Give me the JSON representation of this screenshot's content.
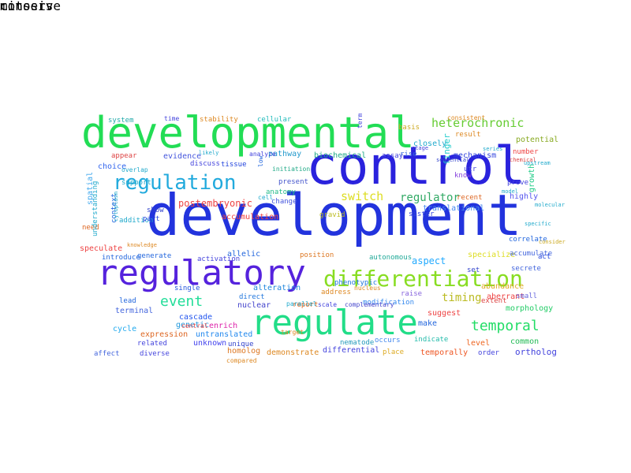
{
  "words": [
    {
      "text": "development",
      "color": "#2233dd"
    },
    {
      "text": "control",
      "color": "#2a22dd"
    },
    {
      "text": "developmental",
      "color": "#22dd55"
    },
    {
      "text": "regulatory",
      "color": "#5522dd"
    },
    {
      "text": "regulate",
      "color": "#22dd88"
    },
    {
      "text": "differentiation",
      "color": "#88dd22"
    },
    {
      "text": "regulation",
      "color": "#22aadd"
    },
    {
      "text": "temporal",
      "color": "#22dd66"
    },
    {
      "text": "event",
      "color": "#22dd99"
    },
    {
      "text": "heterochronic",
      "color": "#66cc33"
    },
    {
      "text": "switch",
      "color": "#dddd22"
    },
    {
      "text": "regulator",
      "color": "#33aa66"
    },
    {
      "text": "timing",
      "color": "#bbbb22"
    },
    {
      "text": "postembryonic",
      "color": "#ee4444"
    },
    {
      "text": "aspect",
      "color": "#22aaff"
    },
    {
      "text": "finger",
      "color": "#22cccc"
    },
    {
      "text": "growth",
      "color": "#22cc88"
    },
    {
      "text": "highly",
      "color": "#5555ee"
    },
    {
      "text": "translational",
      "color": "#4488ee"
    },
    {
      "text": "autonomous",
      "color": "#22aa99"
    },
    {
      "text": "specialize",
      "color": "#dddd22"
    },
    {
      "text": "ortholog",
      "color": "#4444dd"
    },
    {
      "text": "genetic",
      "color": "#2299dd"
    },
    {
      "text": "expression",
      "color": "#dd6622"
    },
    {
      "text": "cycle",
      "color": "#22aaee"
    },
    {
      "text": "allelic",
      "color": "#2266dd"
    },
    {
      "text": "choice",
      "color": "#3366ee"
    },
    {
      "text": "spatial",
      "color": "#44aaee"
    },
    {
      "text": "accumulation",
      "color": "#ee4444"
    },
    {
      "text": "speculate",
      "color": "#ee4444"
    },
    {
      "text": "morphology",
      "color": "#22cc66"
    },
    {
      "text": "aberrant",
      "color": "#ee4444"
    },
    {
      "text": "abundance",
      "color": "#ddaa22"
    },
    {
      "text": "nuclear",
      "color": "#4444cc"
    },
    {
      "text": "alteration",
      "color": "#2288dd"
    },
    {
      "text": "enrich",
      "color": "#dd22aa"
    },
    {
      "text": "cascade",
      "color": "#2255ee"
    },
    {
      "text": "terminal",
      "color": "#4466dd"
    },
    {
      "text": "unknown",
      "color": "#4444ee"
    },
    {
      "text": "untranslated",
      "color": "#2288ee"
    },
    {
      "text": "homolog",
      "color": "#dd7722"
    },
    {
      "text": "differential",
      "color": "#4444dd"
    },
    {
      "text": "demonstrate",
      "color": "#dd8822"
    },
    {
      "text": "temporally",
      "color": "#ee5522"
    },
    {
      "text": "nematode",
      "color": "#2299bb"
    },
    {
      "text": "occurs",
      "color": "#4488ee"
    },
    {
      "text": "indicate",
      "color": "#22bbaa"
    },
    {
      "text": "level",
      "color": "#ee6622"
    },
    {
      "text": "common",
      "color": "#22bb55"
    },
    {
      "text": "suggest",
      "color": "#ee4444"
    },
    {
      "text": "make",
      "color": "#2266dd"
    },
    {
      "text": "raise",
      "color": "#8866dd"
    },
    {
      "text": "modification",
      "color": "#3388ee"
    },
    {
      "text": "mechanism",
      "color": "#3344dd"
    },
    {
      "text": "potential",
      "color": "#88aa22"
    },
    {
      "text": "closely",
      "color": "#22aacc"
    },
    {
      "text": "biochemical",
      "color": "#22aa88"
    },
    {
      "text": "pathway",
      "color": "#2299cc"
    },
    {
      "text": "evidence",
      "color": "#4455dd"
    },
    {
      "text": "appear",
      "color": "#dd4444"
    },
    {
      "text": "system",
      "color": "#22aaaa"
    },
    {
      "text": "stability",
      "color": "#dd8822"
    },
    {
      "text": "cellular",
      "color": "#22bbbb"
    },
    {
      "text": "basis",
      "color": "#ccaa22"
    },
    {
      "text": "result",
      "color": "#dd8822"
    },
    {
      "text": "assay",
      "color": "#4444dd"
    },
    {
      "text": "know",
      "color": "#8844dd"
    },
    {
      "text": "sister",
      "color": "#3344dd"
    },
    {
      "text": "recent",
      "color": "#dd6622"
    },
    {
      "text": "gravid",
      "color": "#bbbb22"
    },
    {
      "text": "anatomy",
      "color": "#22bb88"
    },
    {
      "text": "present",
      "color": "#4455cc"
    },
    {
      "text": "change",
      "color": "#4455dd"
    },
    {
      "text": "tissue",
      "color": "#2244dd"
    },
    {
      "text": "discuss",
      "color": "#4444dd"
    },
    {
      "text": "show",
      "color": "#3344cc"
    },
    {
      "text": "need",
      "color": "#dd6622"
    },
    {
      "text": "introduce",
      "color": "#2266dd"
    },
    {
      "text": "generate",
      "color": "#2266dd"
    },
    {
      "text": "context",
      "color": "#2266dd"
    },
    {
      "text": "activation",
      "color": "#4444dd"
    },
    {
      "text": "position",
      "color": "#dd7722"
    },
    {
      "text": "address",
      "color": "#dd8822"
    },
    {
      "text": "phenotypic",
      "color": "#2277dd"
    },
    {
      "text": "direct",
      "color": "#2277dd"
    },
    {
      "text": "report",
      "color": "#dd6622"
    },
    {
      "text": "single",
      "color": "#2255dd"
    },
    {
      "text": "lead",
      "color": "#2266dd"
    },
    {
      "text": "related",
      "color": "#4444dd"
    },
    {
      "text": "diverse",
      "color": "#4444dd"
    },
    {
      "text": "affect",
      "color": "#4466dd"
    },
    {
      "text": "unique",
      "color": "#3344cc"
    },
    {
      "text": "place",
      "color": "#ddaa22"
    },
    {
      "text": "order",
      "color": "#4444dd"
    },
    {
      "text": "correlate",
      "color": "#2266dd"
    },
    {
      "text": "accumulate",
      "color": "#4466dd"
    },
    {
      "text": "secrete",
      "color": "#4466dd"
    },
    {
      "text": "act",
      "color": "#2244dd"
    },
    {
      "text": "set",
      "color": "#3344cc"
    },
    {
      "text": "extent",
      "color": "#dd4444"
    },
    {
      "text": "small",
      "color": "#6666dd"
    },
    {
      "text": "number",
      "color": "#ee4444"
    },
    {
      "text": "utr",
      "color": "#4444dd"
    },
    {
      "text": "prove",
      "color": "#4444dd"
    },
    {
      "text": "rise",
      "color": "#3366dd"
    },
    {
      "text": "understanding",
      "color": "#22aacc"
    },
    {
      "text": "consistent",
      "color": "#dd8822"
    },
    {
      "text": "support",
      "color": "#22aacc"
    },
    {
      "text": "time",
      "color": "#4444dd"
    },
    {
      "text": "overlap",
      "color": "#22aacc"
    },
    {
      "text": "addition",
      "color": "#22aacc"
    },
    {
      "text": "part",
      "color": "#2244dd"
    },
    {
      "text": "central",
      "color": "#ee4444"
    },
    {
      "text": "scale",
      "color": "#4444dd"
    },
    {
      "text": "nucleus",
      "color": "#dd8822"
    },
    {
      "text": "parallel",
      "color": "#22aacc"
    },
    {
      "text": "low",
      "color": "#2266dd"
    },
    {
      "text": "initiation",
      "color": "#22aa88"
    },
    {
      "text": "analyze",
      "color": "#4444dd"
    },
    {
      "text": "cell",
      "color": "#22aacc"
    },
    {
      "text": "complementary",
      "color": "#4444cc"
    },
    {
      "text": "compared",
      "color": "#dd8822"
    },
    {
      "text": "target",
      "color": "#dd8822"
    },
    {
      "text": "term",
      "color": "#4444dd"
    },
    {
      "text": "series",
      "color": "#22aacc"
    },
    {
      "text": "chemical",
      "color": "#dd4444"
    },
    {
      "text": "upstream",
      "color": "#22aacc"
    },
    {
      "text": "sequential",
      "color": "#3344cc"
    },
    {
      "text": "likely",
      "color": "#22aacc"
    },
    {
      "text": "model",
      "color": "#22aacc"
    },
    {
      "text": "stage",
      "color": "#4444dd"
    },
    {
      "text": "knowledge",
      "color": "#dd8822"
    },
    {
      "text": "molecular",
      "color": "#22aacc"
    },
    {
      "text": "consider",
      "color": "#ccaa22"
    },
    {
      "text": "specific",
      "color": "#22aacc"
    },
    {
      "text": "cytoplasm",
      "color": "#22aacc"
    },
    {
      "text": "mitosis",
      "color": "#22aacc"
    },
    {
      "text": "conserve",
      "color": "#22aacc"
    }
  ]
}
